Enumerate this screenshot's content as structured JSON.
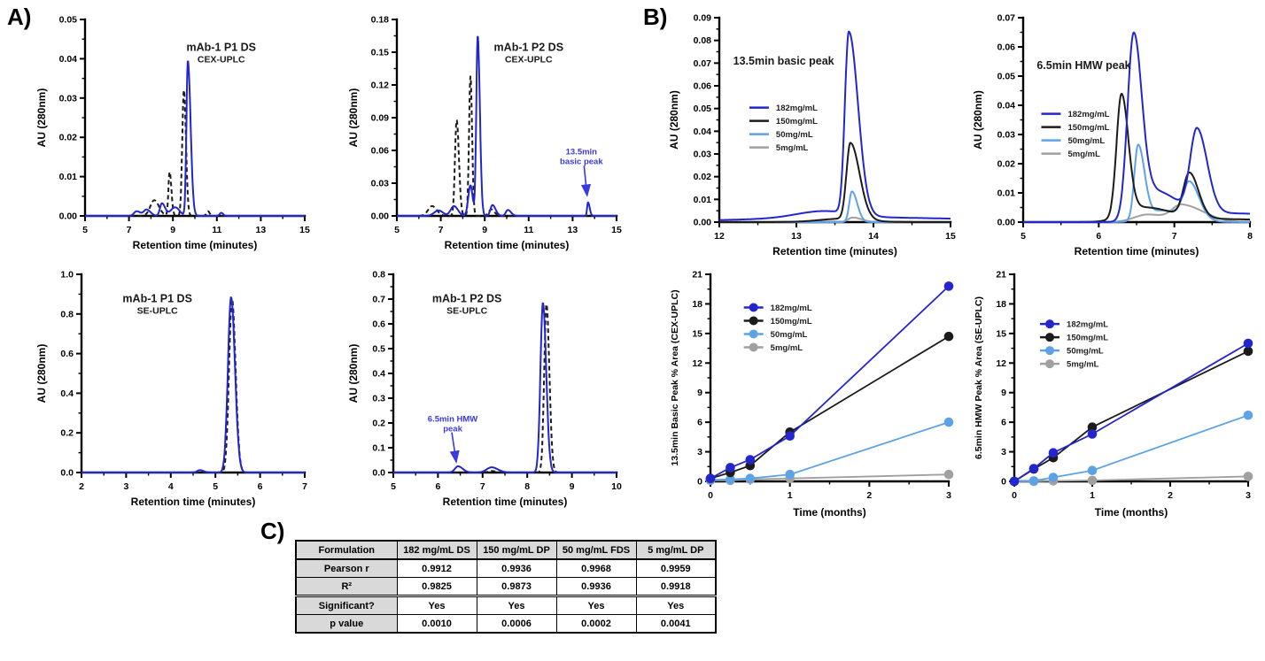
{
  "panel_labels": {
    "a": "A)",
    "b": "B)",
    "c": "C)"
  },
  "colors": {
    "blue": "#2426cd",
    "black": "#1b1b1b",
    "light_blue": "#5ea2e6",
    "gray": "#a0a0a0",
    "annotation": "#3a3ae0",
    "table_header_bg": "#d9d9d9"
  },
  "chart_data": [
    {
      "type": "line",
      "subtype": "chromatogram",
      "title": "mAb-1 P1 DS",
      "subtitle": "CEX-UPLC",
      "title_fx": 0.62,
      "title_fy": 0.16,
      "xlabel": "Retention time (minutes)",
      "ylabel": "AU (280nm)",
      "xlim": [
        5,
        15
      ],
      "xticks": [
        5,
        7,
        9,
        11,
        13,
        15
      ],
      "xdp": 0,
      "ylim": [
        0,
        0.05
      ],
      "yticks": [
        0,
        0.01,
        0.02,
        0.03,
        0.04,
        0.05
      ],
      "ydp": 2,
      "ml": 58,
      "mr": 14,
      "mt": 12,
      "mb": 44,
      "series": [
        {
          "color": "blue",
          "peaks": [
            [
              7.35,
              0.0012,
              0.12,
              1.5
            ],
            [
              7.8,
              0.0016,
              0.12,
              1.5
            ],
            [
              8.5,
              0.0032,
              0.09,
              1.6
            ],
            [
              9.1,
              0.0022,
              0.2,
              1.0
            ],
            [
              9.68,
              0.0395,
              0.065,
              1.9
            ],
            [
              11.2,
              0.0008,
              0.07,
              1.2
            ]
          ]
        },
        {
          "color": "black",
          "dash": "5 3.5",
          "peaks": [
            [
              8.15,
              0.004,
              0.18,
              1.2
            ],
            [
              8.85,
              0.0112,
              0.055,
              1.5
            ],
            [
              9.5,
              0.032,
              0.075,
              1.25
            ],
            [
              10.6,
              0.0012,
              0.07,
              1.0
            ]
          ]
        }
      ]
    },
    {
      "type": "line",
      "subtype": "chromatogram",
      "title": "mAb-1 P2 DS",
      "subtitle": "CEX-UPLC",
      "title_fx": 0.6,
      "title_fy": 0.16,
      "xlabel": "Retention time (minutes)",
      "ylabel": "AU (280nm)",
      "xlim": [
        5,
        15
      ],
      "xticks": [
        5,
        7,
        9,
        11,
        13,
        15
      ],
      "xdp": 0,
      "ylim": [
        0,
        0.18
      ],
      "yticks": [
        0,
        0.03,
        0.06,
        0.09,
        0.12,
        0.15,
        0.18
      ],
      "ydp": 2,
      "ml": 58,
      "mr": 14,
      "mt": 12,
      "mb": 44,
      "annotation": {
        "lines": [
          "13.5min",
          "basic peak"
        ],
        "tx": 13.4,
        "ty": 0.0565,
        "arrow": [
          13.52,
          0.046,
          13.66,
          0.0185
        ]
      },
      "series": [
        {
          "color": "blue",
          "peaks": [
            [
              6.9,
              0.005,
              0.2,
              1.0
            ],
            [
              7.6,
              0.009,
              0.15,
              1.2
            ],
            [
              8.35,
              0.028,
              0.1,
              1.0
            ],
            [
              8.68,
              0.165,
              0.065,
              1.5
            ],
            [
              9.35,
              0.01,
              0.09,
              1.6
            ],
            [
              10.05,
              0.0055,
              0.09,
              1.6
            ],
            [
              13.7,
              0.0125,
              0.04,
              1.9
            ]
          ]
        },
        {
          "color": "black",
          "dash": "5 3.5",
          "peaks": [
            [
              6.6,
              0.009,
              0.18,
              1.2
            ],
            [
              7.72,
              0.088,
              0.075,
              1.4
            ],
            [
              8.35,
              0.128,
              0.065,
              1.15
            ],
            [
              9.3,
              0.006,
              0.12,
              1.2
            ]
          ]
        }
      ]
    },
    {
      "type": "line",
      "subtype": "chromatogram",
      "title": "mAb-1 P1 DS",
      "subtitle": "SE-UPLC",
      "title_fx": 0.34,
      "title_fy": 0.14,
      "xlabel": "Retention time (minutes)",
      "ylabel": "AU (280nm)",
      "xlim": [
        2,
        7
      ],
      "xticks": [
        2,
        3,
        4,
        5,
        6,
        7
      ],
      "xdp": 0,
      "ylim": [
        0,
        1.0
      ],
      "yticks": [
        0,
        0.2,
        0.4,
        0.6,
        0.8,
        1.0
      ],
      "ydp": 1,
      "ml": 54,
      "mr": 14,
      "mt": 12,
      "mb": 44,
      "series": [
        {
          "color": "blue",
          "peaks": [
            [
              4.65,
              0.012,
              0.06,
              1.4
            ],
            [
              5.35,
              0.885,
              0.07,
              1.25
            ]
          ]
        },
        {
          "color": "black",
          "dash": "5 3.5",
          "peaks": [
            [
              5.37,
              0.875,
              0.065,
              1.25
            ]
          ]
        }
      ]
    },
    {
      "type": "line",
      "subtype": "chromatogram",
      "title": "mAb-1 P2 DS",
      "subtitle": "SE-UPLC",
      "title_fx": 0.33,
      "title_fy": 0.14,
      "xlabel": "Retention time (minutes)",
      "ylabel": "AU (280nm)",
      "xlim": [
        5,
        10
      ],
      "xticks": [
        5,
        6,
        7,
        8,
        9,
        10
      ],
      "xdp": 0,
      "ylim": [
        0,
        0.8
      ],
      "yticks": [
        0,
        0.1,
        0.2,
        0.3,
        0.4,
        0.5,
        0.6,
        0.7,
        0.8
      ],
      "ydp": 1,
      "ml": 54,
      "mr": 14,
      "mt": 12,
      "mb": 44,
      "annotation": {
        "lines": [
          "6.5min HMW",
          "peak"
        ],
        "tx": 6.33,
        "ty": 0.205,
        "arrow": [
          6.31,
          0.162,
          6.41,
          0.042
        ]
      },
      "series": [
        {
          "color": "blue",
          "peaks": [
            [
              6.45,
              0.025,
              0.07,
              1.5
            ],
            [
              7.2,
              0.021,
              0.11,
              1.3
            ],
            [
              8.35,
              0.685,
              0.055,
              1.35
            ]
          ]
        },
        {
          "color": "black",
          "dash": "5 3.5",
          "peaks": [
            [
              7.2,
              0.006,
              0.08,
              1.2
            ],
            [
              8.43,
              0.68,
              0.05,
              1.3
            ]
          ]
        }
      ]
    },
    {
      "type": "line",
      "subtype": "chromatogram",
      "title": "13.5min basic peak",
      "title_fx": 0.06,
      "title_fy": 0.23,
      "title_anchor": "start",
      "xlabel": "Retention time (minutes)",
      "ylabel": "AU (280nm)",
      "xlim": [
        12,
        15
      ],
      "xticks": [
        12,
        13,
        14,
        15
      ],
      "xdp": 0,
      "ylim": [
        0,
        0.09
      ],
      "yticks": [
        0,
        0.01,
        0.02,
        0.03,
        0.04,
        0.05,
        0.06,
        0.07,
        0.08,
        0.09
      ],
      "ydp": 2,
      "ml": 60,
      "mr": 14,
      "mt": 12,
      "mb": 44,
      "legend": {
        "fx": 0.13,
        "fy": 0.44
      },
      "series": [
        {
          "label": "182mg/mL",
          "color": "blue",
          "peaks": [
            [
              13.9,
              0.002,
              1.5,
              1.0
            ],
            [
              13.35,
              0.003,
              0.35,
              1.0
            ],
            [
              13.68,
              0.08,
              0.05,
              2.4
            ]
          ]
        },
        {
          "label": "150mg/mL",
          "color": "black",
          "peaks": [
            [
              13.6,
              0.0015,
              0.3,
              1.0
            ],
            [
              13.7,
              0.0335,
              0.05,
              2.4
            ]
          ]
        },
        {
          "label": "50mg/mL",
          "color": "light_blue",
          "peaks": [
            [
              13.72,
              0.0135,
              0.035,
              2.0
            ]
          ]
        },
        {
          "label": "5mg/mL",
          "color": "gray",
          "peaks": [
            [
              13.73,
              0.002,
              0.06,
              2.0
            ]
          ]
        }
      ]
    },
    {
      "type": "line",
      "subtype": "chromatogram",
      "title": "6.5min HMW peak",
      "title_fx": 0.06,
      "title_fy": 0.25,
      "title_anchor": "start",
      "xlabel": "Retention time (minutes)",
      "ylabel": "AU (280nm)",
      "xlim": [
        5,
        8
      ],
      "xticks": [
        5,
        6,
        7,
        8
      ],
      "xdp": 0,
      "ylim": [
        0,
        0.07
      ],
      "yticks": [
        0,
        0.01,
        0.02,
        0.03,
        0.04,
        0.05,
        0.06,
        0.07
      ],
      "ydp": 2,
      "ml": 60,
      "mr": 14,
      "mt": 12,
      "mb": 44,
      "legend": {
        "fx": 0.08,
        "fy": 0.47
      },
      "series": [
        {
          "label": "182mg/mL",
          "color": "blue",
          "peaks": [
            [
              6.46,
              0.062,
              0.08,
              1.35
            ],
            [
              6.75,
              0.01,
              0.18,
              1.6
            ],
            [
              7.3,
              0.0285,
              0.09,
              1.5
            ],
            [
              7.7,
              0.003,
              0.5,
              2.0
            ]
          ]
        },
        {
          "label": "150mg/mL",
          "color": "black",
          "peaks": [
            [
              6.3,
              0.0415,
              0.065,
              1.4
            ],
            [
              6.6,
              0.005,
              0.25,
              1.5
            ],
            [
              7.2,
              0.015,
              0.08,
              1.5
            ],
            [
              7.6,
              0.001,
              0.4,
              2.0
            ]
          ]
        },
        {
          "label": "50mg/mL",
          "color": "light_blue",
          "peaks": [
            [
              6.52,
              0.0255,
              0.05,
              1.7
            ],
            [
              6.85,
              0.004,
              0.2,
              1.5
            ],
            [
              7.2,
              0.012,
              0.08,
              1.6
            ]
          ]
        },
        {
          "label": "5mg/mL",
          "color": "gray",
          "peaks": [
            [
              6.65,
              0.0026,
              0.18,
              1.2
            ],
            [
              7.1,
              0.0058,
              0.13,
              2.2
            ]
          ]
        }
      ]
    },
    {
      "type": "line",
      "markers": true,
      "xlabel": "Time (months)",
      "ylabel": "13.5min Basic Peak % Area (CEX-UPLC)",
      "yls": 10.5,
      "xlim": [
        0,
        3
      ],
      "xticks": [
        0,
        1,
        2,
        3
      ],
      "xdp": 0,
      "ylim": [
        0,
        21
      ],
      "yticks": [
        0,
        3,
        6,
        9,
        12,
        15,
        18,
        21
      ],
      "ydp": 0,
      "ml": 50,
      "mr": 16,
      "mt": 12,
      "mb": 46,
      "legend": {
        "fx": 0.14,
        "fy": 0.16
      },
      "x": [
        0,
        0.25,
        0.5,
        1,
        3
      ],
      "series": [
        {
          "label": "182mg/mL",
          "color": "blue",
          "y": [
            0.3,
            1.4,
            2.2,
            4.6,
            19.8
          ]
        },
        {
          "label": "150mg/mL",
          "color": "black",
          "y": [
            0.3,
            0.9,
            1.6,
            5.0,
            14.7
          ]
        },
        {
          "label": "50mg/mL",
          "color": "light_blue",
          "y": [
            0.15,
            0.2,
            0.3,
            0.7,
            6.0
          ]
        },
        {
          "label": "5mg/mL",
          "color": "gray",
          "y": [
            0.1,
            0.1,
            0.2,
            0.3,
            0.7
          ]
        }
      ]
    },
    {
      "type": "line",
      "markers": true,
      "xlabel": "Time (months)",
      "ylabel": "6.5min HMW Peak % Area (SE-UPLC)",
      "yls": 10.5,
      "xlim": [
        0,
        3
      ],
      "xticks": [
        0,
        1,
        2,
        3
      ],
      "xdp": 0,
      "ylim": [
        0,
        21
      ],
      "yticks": [
        0,
        3,
        6,
        9,
        12,
        15,
        18,
        21
      ],
      "ydp": 0,
      "ml": 50,
      "mr": 16,
      "mt": 12,
      "mb": 46,
      "legend": {
        "fx": 0.11,
        "fy": 0.24
      },
      "x": [
        0,
        0.25,
        0.5,
        1,
        3
      ],
      "series": [
        {
          "label": "182mg/mL",
          "color": "blue",
          "y": [
            0,
            1.3,
            2.9,
            4.8,
            14.0
          ]
        },
        {
          "label": "150mg/mL",
          "color": "black",
          "y": [
            0,
            1.25,
            2.4,
            5.5,
            13.2
          ]
        },
        {
          "label": "50mg/mL",
          "color": "light_blue",
          "y": [
            0,
            0.05,
            0.4,
            1.1,
            6.7
          ]
        },
        {
          "label": "5mg/mL",
          "color": "gray",
          "y": [
            0,
            0,
            0.05,
            0.1,
            0.5
          ]
        }
      ]
    }
  ],
  "table": {
    "headers": [
      "Formulation",
      "182 mg/mL DS",
      "150 mg/mL DP",
      "50 mg/mL FDS",
      "5 mg/mL DP"
    ],
    "rows": [
      {
        "label": "Pearson r",
        "values": [
          "0.9912",
          "0.9936",
          "0.9968",
          "0.9959"
        ]
      },
      {
        "label": "R²",
        "values": [
          "0.9825",
          "0.9873",
          "0.9936",
          "0.9918"
        ]
      },
      {
        "label": "Significant?",
        "values": [
          "Yes",
          "Yes",
          "Yes",
          "Yes"
        ]
      },
      {
        "label": "p value",
        "values": [
          "0.0010",
          "0.0006",
          "0.0002",
          "0.0041"
        ]
      }
    ]
  }
}
